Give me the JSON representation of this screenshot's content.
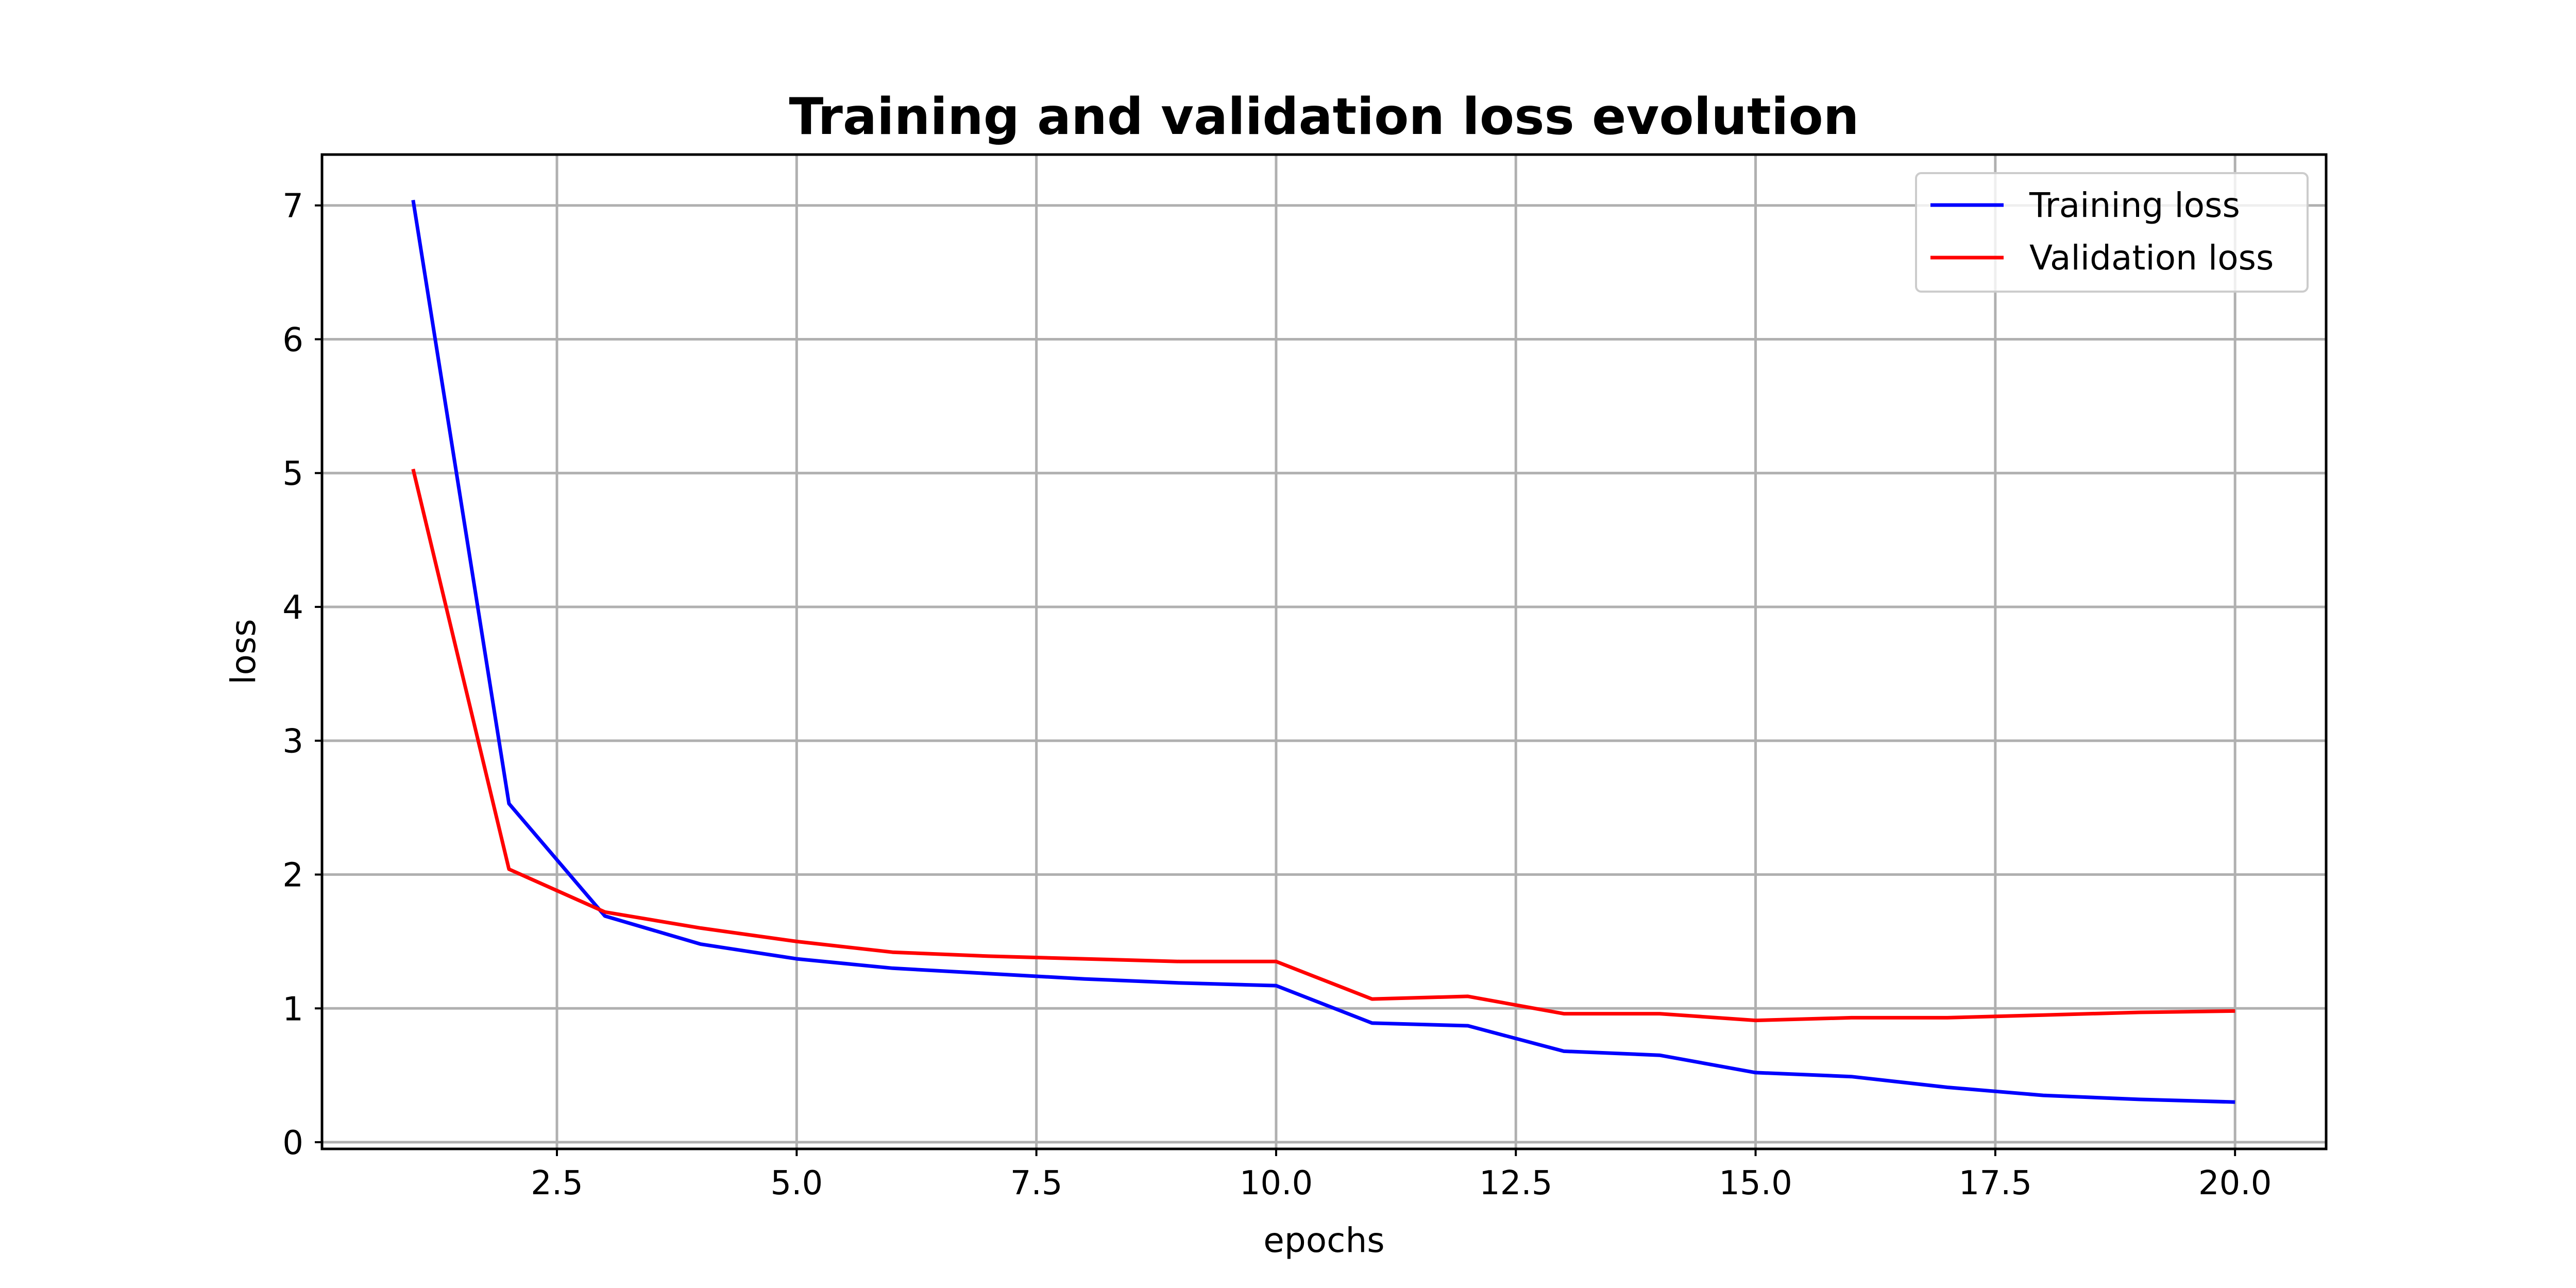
{
  "chart_data": {
    "type": "line",
    "title": "Training and validation loss evolution",
    "xlabel": "epochs",
    "ylabel": "loss",
    "xlim": [
      0.05,
      20.95
    ],
    "ylim": [
      -0.05,
      7.38
    ],
    "x_ticks": [
      2.5,
      5.0,
      7.5,
      10.0,
      12.5,
      15.0,
      17.5,
      20.0
    ],
    "x_tick_labels": [
      "2.5",
      "5.0",
      "7.5",
      "10.0",
      "12.5",
      "15.0",
      "17.5",
      "20.0"
    ],
    "y_ticks": [
      0,
      1,
      2,
      3,
      4,
      5,
      6,
      7
    ],
    "y_tick_labels": [
      "0",
      "1",
      "2",
      "3",
      "4",
      "5",
      "6",
      "7"
    ],
    "grid": true,
    "legend_position": "top-right",
    "x": [
      1,
      2,
      3,
      4,
      5,
      6,
      7,
      8,
      9,
      10,
      11,
      12,
      13,
      14,
      15,
      16,
      17,
      18,
      19,
      20
    ],
    "series": [
      {
        "name": "Training loss",
        "color": "#0000ff",
        "values": [
          7.04,
          2.53,
          1.69,
          1.48,
          1.37,
          1.3,
          1.26,
          1.22,
          1.19,
          1.17,
          0.89,
          0.87,
          0.68,
          0.65,
          0.52,
          0.49,
          0.41,
          0.35,
          0.32,
          0.3
        ]
      },
      {
        "name": "Validation loss",
        "color": "#ff0000",
        "values": [
          5.03,
          2.04,
          1.72,
          1.6,
          1.5,
          1.42,
          1.39,
          1.37,
          1.35,
          1.35,
          1.07,
          1.09,
          0.96,
          0.96,
          0.91,
          0.93,
          0.93,
          0.95,
          0.97,
          0.98
        ]
      }
    ]
  }
}
